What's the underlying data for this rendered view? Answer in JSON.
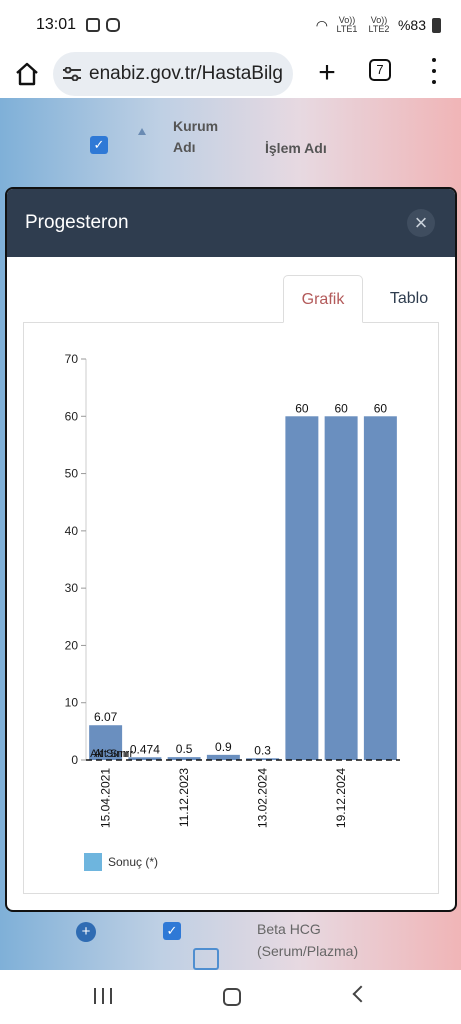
{
  "status_bar": {
    "time": "13:01",
    "sim1": "Vo)) LTE1",
    "sim2": "Vo)) LTE2",
    "battery": "%83"
  },
  "browser": {
    "url": "enabiz.gov.tr/HastaBilg",
    "tab_count": "7"
  },
  "table_header": {
    "col1": "Kurum Adı",
    "col2": "İşlem Adı"
  },
  "modal": {
    "title": "Progesteron",
    "close_label": "×",
    "tabs": [
      {
        "label": "Grafik",
        "active": true
      },
      {
        "label": "Tablo",
        "active": false
      }
    ]
  },
  "below_row": {
    "text": "Beta HCG (Serum/Plazma)"
  },
  "colors": {
    "bar": "#6a8fbf",
    "legend": "#6eb5de",
    "header_bg": "#2f3d4f",
    "active_tab": "#b35a5a"
  },
  "chart_data": {
    "type": "bar",
    "ylim": [
      0,
      70
    ],
    "yticks": [
      0,
      10,
      20,
      30,
      40,
      50,
      60,
      70
    ],
    "values": [
      6.07,
      0.474,
      0.5,
      0.9,
      0.3,
      60,
      60,
      60
    ],
    "data_labels": [
      "6.07",
      "0.474",
      "0.5",
      "0.9",
      "0.3",
      "60",
      "60",
      "60"
    ],
    "x_tick_labels": [
      "15.04.2021",
      "11.12.2023",
      "13.02.2024",
      "19.12.2024"
    ],
    "x_tick_positions": [
      0.5,
      2.5,
      4.5,
      6.5
    ],
    "overlay_label": "Alt Sınır",
    "reference_line": 0,
    "legend": [
      {
        "name": "Sonuç (*)",
        "color": "#6eb5de"
      }
    ],
    "legend_placement": "bottom-left"
  }
}
